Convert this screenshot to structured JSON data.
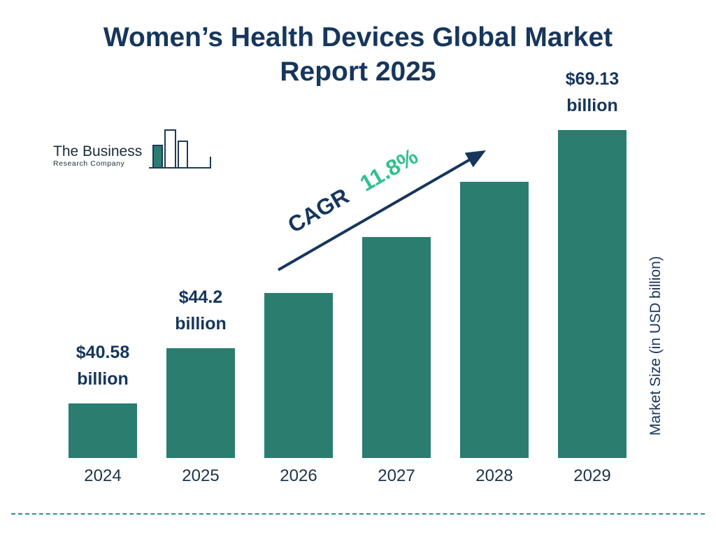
{
  "title": "Women’s Health Devices Global Market Report 2025",
  "logo": {
    "name_line1": "The Business",
    "name_line2": "Research Company"
  },
  "cagr": {
    "label": "CAGR",
    "value": "11.8%"
  },
  "y_axis_label": "Market Size (in USD billion)",
  "chart_data": {
    "type": "bar",
    "title": "Women’s Health Devices Global Market Report 2025",
    "categories": [
      "2024",
      "2025",
      "2026",
      "2027",
      "2028",
      "2029"
    ],
    "values": [
      40.58,
      44.2,
      49.4,
      55.3,
      61.8,
      69.13
    ],
    "value_labels": [
      "$40.58 billion",
      "$44.2 billion",
      "",
      "",
      "",
      "$69.13 billion"
    ],
    "ylabel": "Market Size (in USD billion)",
    "cagr_percent": 11.8,
    "bar_color": "#2A7D6F",
    "legend": "none",
    "grid": false
  },
  "colors": {
    "navy": "#16365C",
    "teal": "#2A7D6F",
    "green": "#2FBF90",
    "dashed_line": "#2E9184"
  }
}
